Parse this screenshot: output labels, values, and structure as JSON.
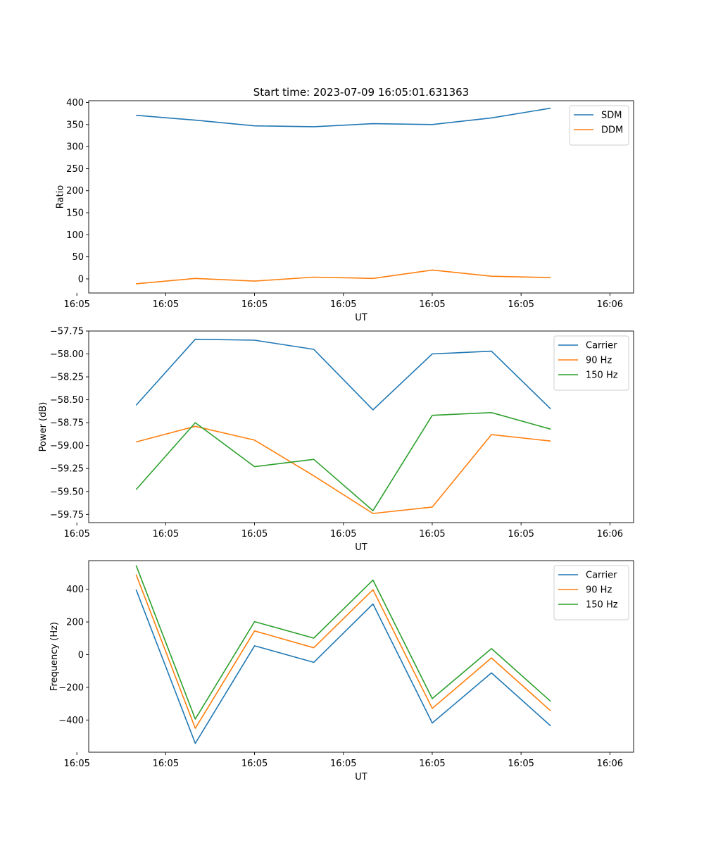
{
  "figure_title": "Start time: 2023-07-09 16:05:01.631363",
  "chart_data": [
    {
      "type": "line",
      "title": "Start time: 2023-07-09 16:05:01.631363",
      "xlabel": "UT",
      "ylabel": "Ratio",
      "x": [
        1,
        2,
        3,
        4,
        5,
        6,
        7,
        8
      ],
      "xlim": [
        0.2,
        9.4
      ],
      "xticks": [
        {
          "v": 0,
          "label": "16:05"
        },
        {
          "v": 1.5,
          "label": "16:05"
        },
        {
          "v": 3,
          "label": "16:05"
        },
        {
          "v": 4.5,
          "label": "16:05"
        },
        {
          "v": 6,
          "label": "16:05"
        },
        {
          "v": 7.5,
          "label": "16:05"
        },
        {
          "v": 9,
          "label": "16:06"
        }
      ],
      "ylim": [
        -32,
        404
      ],
      "yticks": [
        {
          "v": 0,
          "label": "0"
        },
        {
          "v": 50,
          "label": "50"
        },
        {
          "v": 100,
          "label": "100"
        },
        {
          "v": 150,
          "label": "150"
        },
        {
          "v": 200,
          "label": "200"
        },
        {
          "v": 250,
          "label": "250"
        },
        {
          "v": 300,
          "label": "300"
        },
        {
          "v": 350,
          "label": "350"
        },
        {
          "v": 400,
          "label": "400"
        }
      ],
      "legend_position": "top-right",
      "series": [
        {
          "name": "SDM",
          "color": "#1f77b4",
          "values": [
            371,
            360,
            347,
            345,
            352,
            350,
            365,
            387
          ]
        },
        {
          "name": "DDM",
          "color": "#ff7f0e",
          "values": [
            -11,
            1,
            -5,
            4,
            1,
            20,
            6,
            3
          ]
        }
      ]
    },
    {
      "type": "line",
      "title": "",
      "xlabel": "UT",
      "ylabel": "Power (dB)",
      "x": [
        1,
        2,
        3,
        4,
        5,
        6,
        7,
        8
      ],
      "xlim": [
        0.2,
        9.4
      ],
      "xticks": [
        {
          "v": 0,
          "label": "16:05"
        },
        {
          "v": 1.5,
          "label": "16:05"
        },
        {
          "v": 3,
          "label": "16:05"
        },
        {
          "v": 4.5,
          "label": "16:05"
        },
        {
          "v": 6,
          "label": "16:05"
        },
        {
          "v": 7.5,
          "label": "16:05"
        },
        {
          "v": 9,
          "label": "16:06"
        }
      ],
      "ylim": [
        -59.84,
        -57.75
      ],
      "yticks": [
        {
          "v": -57.75,
          "label": "−57.75"
        },
        {
          "v": -58.0,
          "label": "−58.00"
        },
        {
          "v": -58.25,
          "label": "−58.25"
        },
        {
          "v": -58.5,
          "label": "−58.50"
        },
        {
          "v": -58.75,
          "label": "−58.75"
        },
        {
          "v": -59.0,
          "label": "−59.00"
        },
        {
          "v": -59.25,
          "label": "−59.25"
        },
        {
          "v": -59.5,
          "label": "−59.50"
        },
        {
          "v": -59.75,
          "label": "−59.75"
        }
      ],
      "legend_position": "top-right",
      "series": [
        {
          "name": "Carrier",
          "color": "#1f77b4",
          "values": [
            -58.56,
            -57.84,
            -57.85,
            -57.95,
            -58.61,
            -58.0,
            -57.97,
            -58.6
          ]
        },
        {
          "name": "90 Hz",
          "color": "#ff7f0e",
          "values": [
            -58.96,
            -58.79,
            -58.94,
            -59.33,
            -59.74,
            -59.67,
            -58.88,
            -58.95
          ]
        },
        {
          "name": "150 Hz",
          "color": "#2ca02c",
          "values": [
            -59.48,
            -58.75,
            -59.23,
            -59.15,
            -59.71,
            -58.67,
            -58.64,
            -58.82
          ]
        }
      ]
    },
    {
      "type": "line",
      "title": "",
      "xlabel": "UT",
      "ylabel": "Frequency (Hz)",
      "x": [
        1,
        2,
        3,
        4,
        5,
        6,
        7,
        8
      ],
      "xlim": [
        0.2,
        9.4
      ],
      "xticks": [
        {
          "v": 0,
          "label": "16:05"
        },
        {
          "v": 1.5,
          "label": "16:05"
        },
        {
          "v": 3,
          "label": "16:05"
        },
        {
          "v": 4.5,
          "label": "16:05"
        },
        {
          "v": 6,
          "label": "16:05"
        },
        {
          "v": 7.5,
          "label": "16:05"
        },
        {
          "v": 9,
          "label": "16:06"
        }
      ],
      "ylim": [
        -597,
        575
      ],
      "yticks": [
        {
          "v": -400,
          "label": "−400"
        },
        {
          "v": -200,
          "label": "−200"
        },
        {
          "v": 0,
          "label": "0"
        },
        {
          "v": 200,
          "label": "200"
        },
        {
          "v": 400,
          "label": "400"
        }
      ],
      "legend_position": "top-right",
      "series": [
        {
          "name": "Carrier",
          "color": "#1f77b4",
          "values": [
            398,
            -543,
            54,
            -47,
            310,
            -418,
            -112,
            -436
          ]
        },
        {
          "name": "90 Hz",
          "color": "#ff7f0e",
          "values": [
            490,
            -451,
            145,
            42,
            397,
            -329,
            -20,
            -344
          ]
        },
        {
          "name": "150 Hz",
          "color": "#2ca02c",
          "values": [
            546,
            -394,
            202,
            101,
            456,
            -269,
            37,
            -286
          ]
        }
      ]
    }
  ]
}
